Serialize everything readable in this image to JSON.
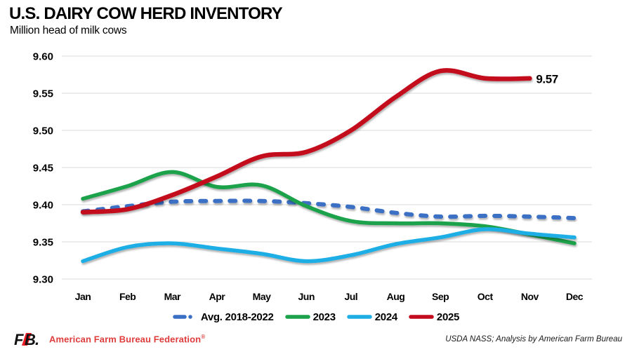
{
  "header": {
    "title": "U.S. DAIRY COW HERD INVENTORY",
    "subtitle": "Million head of milk cows"
  },
  "chart_data": {
    "type": "line",
    "title": "U.S. DAIRY COW HERD INVENTORY",
    "subtitle": "Million head of milk cows",
    "categories": [
      "Jan",
      "Feb",
      "Mar",
      "Apr",
      "May",
      "Jun",
      "Jul",
      "Aug",
      "Sep",
      "Oct",
      "Nov",
      "Dec"
    ],
    "ylim": [
      9.3,
      9.6
    ],
    "ytick_step": 0.05,
    "ytick_labels": [
      "9.60",
      "9.55",
      "9.50",
      "9.45",
      "9.40",
      "9.35",
      "9.30"
    ],
    "grid": true,
    "grid_color": "#D8D8D8",
    "legend_position": "bottom",
    "series": [
      {
        "name": "Avg. 2018-2022",
        "color": "#3A6FC4",
        "line_style": "dashed",
        "values": [
          9.391,
          9.398,
          9.404,
          9.405,
          9.405,
          9.402,
          9.397,
          9.389,
          9.384,
          9.385,
          9.384,
          9.382
        ]
      },
      {
        "name": "2023",
        "color": "#1CA24C",
        "line_style": "solid",
        "values": [
          9.408,
          9.425,
          9.444,
          9.424,
          9.426,
          9.398,
          9.378,
          9.375,
          9.375,
          9.371,
          9.36,
          9.348
        ]
      },
      {
        "name": "2024",
        "color": "#1FAEE4",
        "line_style": "solid",
        "values": [
          9.324,
          9.343,
          9.348,
          9.341,
          9.334,
          9.324,
          9.332,
          9.347,
          9.356,
          9.367,
          9.361,
          9.356
        ]
      },
      {
        "name": "2025",
        "color": "#C30A1E",
        "line_style": "solid",
        "values": [
          9.39,
          9.394,
          9.413,
          9.438,
          9.465,
          9.471,
          9.5,
          9.545,
          9.58,
          9.57,
          9.57,
          null
        ],
        "end_label": "9.57"
      }
    ],
    "annotations": [
      {
        "text": "9.57",
        "series": "2025",
        "position": "end"
      }
    ]
  },
  "footer": {
    "logo": "FB.",
    "brand": "American Farm Bureau Federation",
    "brand_reg": "®",
    "source": "USDA NASS; Analysis by American Farm Bureau"
  }
}
